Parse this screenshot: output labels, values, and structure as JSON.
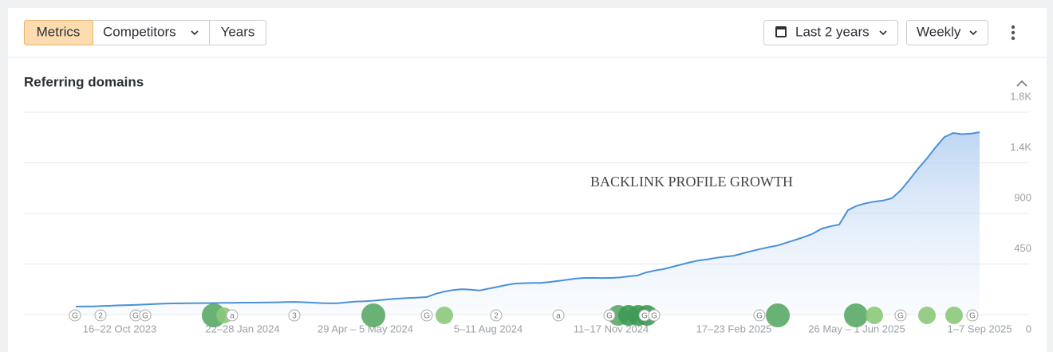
{
  "toolbar": {
    "tabs": [
      "Metrics",
      "Competitors",
      "Years"
    ],
    "period": "Last 2 years",
    "interval": "Weekly"
  },
  "panel_title": "Referring domains",
  "chart_data": {
    "type": "area",
    "annotation": "BACKLINK PROFILE GROWTH",
    "categories": [
      null,
      null,
      null,
      null,
      null,
      "16–22 Oct 2023",
      null,
      null,
      null,
      null,
      null,
      null,
      null,
      null,
      null,
      null,
      null,
      null,
      null,
      "22–28 Jan 2024",
      null,
      null,
      null,
      null,
      null,
      null,
      null,
      null,
      null,
      null,
      null,
      null,
      null,
      "29 Apr – 5 May 2024",
      null,
      null,
      null,
      null,
      null,
      null,
      null,
      null,
      null,
      null,
      null,
      null,
      null,
      "5–11 Aug 2024",
      null,
      null,
      null,
      null,
      null,
      null,
      null,
      null,
      null,
      null,
      null,
      null,
      null,
      "11–17 Nov 2024",
      null,
      null,
      null,
      null,
      null,
      null,
      null,
      null,
      null,
      null,
      null,
      null,
      null,
      "17–23 Feb 2025",
      null,
      null,
      null,
      null,
      null,
      null,
      null,
      null,
      null,
      null,
      null,
      null,
      null,
      "26 May – 1 Jun 2025",
      null,
      null,
      null,
      null,
      null,
      null,
      null,
      null,
      null,
      null,
      null,
      null,
      null,
      "1–7 Sep 2025"
    ],
    "series": [
      {
        "name": "Referring domains",
        "color": "#4a90d9",
        "values": [
          71,
          72,
          73,
          76,
          79,
          82,
          84,
          87,
          90,
          94,
          97,
          99,
          100,
          101,
          102,
          102,
          103,
          104,
          105,
          106,
          106,
          107,
          108,
          109,
          111,
          113,
          110,
          106,
          102,
          100,
          102,
          110,
          116,
          119,
          124,
          131,
          138,
          143,
          148,
          152,
          156,
          185,
          205,
          218,
          226,
          222,
          214,
          230,
          245,
          262,
          276,
          279,
          281,
          282,
          290,
          300,
          310,
          320,
          326,
          327,
          325,
          326,
          330,
          340,
          348,
          375,
          392,
          405,
          425,
          445,
          465,
          482,
          492,
          505,
          515,
          524,
          545,
          565,
          583,
          600,
          615,
          640,
          665,
          690,
          720,
          765,
          785,
          801,
          930,
          968,
          990,
          1005,
          1015,
          1035,
          1105,
          1200,
          1300,
          1390,
          1490,
          1580,
          1616,
          1605,
          1610,
          1623
        ]
      }
    ],
    "ylim": [
      0,
      1800
    ],
    "yticks": [
      0,
      450,
      900,
      {
        "value": 1350,
        "label": "1.4K"
      },
      {
        "value": 1800,
        "label": "1.8K"
      }
    ],
    "grid": true,
    "events": [
      "G",
      "2",
      "G",
      "G",
      "a",
      "3",
      "G",
      "2",
      "a",
      "G",
      "G",
      "G",
      "G",
      "G",
      "G"
    ]
  }
}
